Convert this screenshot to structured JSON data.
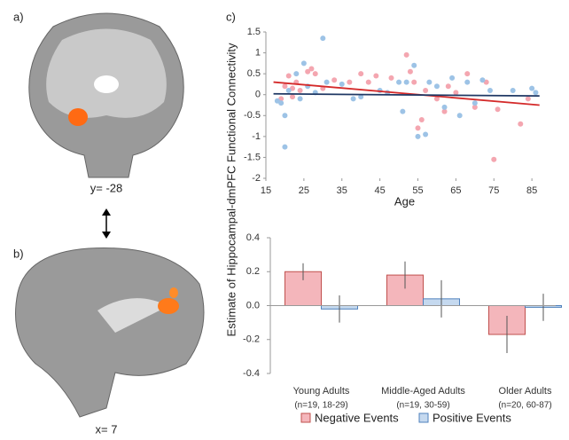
{
  "panels": {
    "a_label": "a)",
    "a_caption": "y= -28",
    "b_label": "b)",
    "b_caption": "x= 7",
    "c_label": "c)"
  },
  "shared_ylabel": "Estimate of Hippocampal-dmPFC Functional Connectivity",
  "chart_data": [
    {
      "type": "scatter",
      "xlabel": "Age",
      "xlim": [
        15,
        88
      ],
      "xticks": [
        15,
        25,
        35,
        45,
        55,
        65,
        75,
        85
      ],
      "ylim": [
        -2,
        1.5
      ],
      "yticks": [
        -2,
        -1.5,
        -1,
        -0.5,
        0,
        0.5,
        1,
        1.5
      ],
      "series": [
        {
          "color": "#f4a6b0",
          "line_color": "#d42a2a",
          "x": [
            20,
            21,
            22,
            23,
            24,
            26,
            27,
            28,
            19,
            22,
            30,
            33,
            37,
            40,
            42,
            44,
            48,
            52,
            53,
            54,
            55,
            56,
            57,
            60,
            62,
            63,
            65,
            68,
            70,
            73,
            75,
            76,
            82,
            84
          ],
          "values": [
            0.2,
            0.45,
            0.15,
            0.3,
            0.1,
            0.55,
            0.62,
            0.5,
            -0.1,
            -0.05,
            0.15,
            0.35,
            0.3,
            0.5,
            0.3,
            0.45,
            0.4,
            0.95,
            0.55,
            0.3,
            -0.8,
            -0.6,
            0.1,
            -0.1,
            -0.4,
            0.2,
            0.05,
            0.5,
            -0.3,
            0.3,
            -1.55,
            -0.35,
            -0.7,
            -0.1
          ],
          "fit": {
            "x": [
              17,
              87
            ],
            "y": [
              0.3,
              -0.25
            ]
          }
        },
        {
          "color": "#9dc3e6",
          "line_color": "#1f3864",
          "x": [
            18,
            19,
            20,
            20,
            21,
            23,
            24,
            25,
            26,
            28,
            30,
            31,
            35,
            38,
            40,
            45,
            47,
            50,
            51,
            52,
            54,
            55,
            57,
            58,
            60,
            62,
            64,
            66,
            68,
            70,
            72,
            74,
            80,
            85,
            86
          ],
          "values": [
            -0.15,
            -0.2,
            -1.25,
            -0.5,
            0.1,
            0.5,
            -0.1,
            0.75,
            0.2,
            0.05,
            1.35,
            0.3,
            0.25,
            -0.1,
            -0.05,
            0.1,
            0.05,
            0.3,
            -0.4,
            0.3,
            0.7,
            -1,
            -0.95,
            0.3,
            0.2,
            -0.3,
            0.4,
            -0.5,
            0.3,
            -0.2,
            0.35,
            0.1,
            0.1,
            0.15,
            0.05
          ],
          "fit": {
            "x": [
              17,
              87
            ],
            "y": [
              0.02,
              -0.03
            ]
          }
        }
      ]
    },
    {
      "type": "bar",
      "categories": [
        "Young Adults",
        "Middle-Aged Adults",
        "Older Adults"
      ],
      "category_notes": [
        "(n=19, 18-29)",
        "(n=19, 30-59)",
        "(n=20, 60-87)"
      ],
      "ylim": [
        -0.4,
        0.4
      ],
      "yticks": [
        {
          "value": -0.4,
          "label": "-0.4"
        },
        {
          "value": -0.2,
          "label": "-0.2"
        },
        {
          "value": 0,
          "label": "0.0"
        },
        {
          "value": 0.2,
          "label": "0.2"
        },
        {
          "value": 0.4,
          "label": "0.4"
        }
      ],
      "legend": "bottom",
      "series": [
        {
          "name": "Negative Events",
          "color": "#f4b6bb",
          "stroke": "#c0504d",
          "values": [
            0.2,
            0.18,
            -0.17
          ],
          "errors": [
            0.05,
            0.08,
            0.11
          ]
        },
        {
          "name": "Positive Events",
          "color": "#c5d9ef",
          "stroke": "#4f81bd",
          "values": [
            -0.02,
            0.04,
            -0.01
          ],
          "errors": [
            0.08,
            0.11,
            0.08
          ]
        }
      ]
    }
  ]
}
